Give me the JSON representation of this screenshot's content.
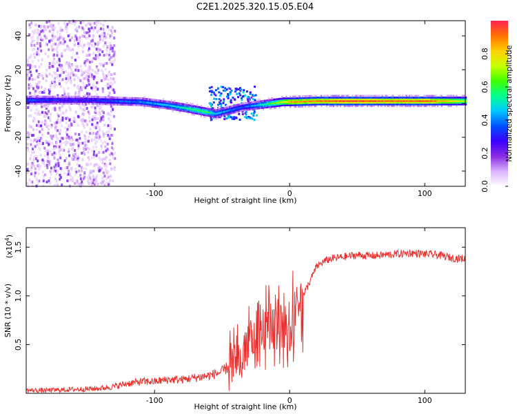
{
  "title": "C2E1.2025.320.15.05.E04",
  "chart_data": [
    {
      "type": "heatmap",
      "xlabel": "Height of straight line (km)",
      "ylabel": "Frequency (Hz)",
      "xlim": [
        -195,
        130
      ],
      "ylim": [
        -49,
        49
      ],
      "xticks": [
        -100,
        0,
        100
      ],
      "yticks": [
        -40,
        -20,
        0,
        20,
        40
      ],
      "colorbar": {
        "label": "Normalized spectral amplitude",
        "range": [
          0,
          1
        ],
        "ticks": [
          "0.0",
          "0.2",
          "0.4",
          "0.6",
          "0.8"
        ],
        "tick_values": [
          0,
          0.2,
          0.4,
          0.6,
          0.8
        ],
        "colors": [
          "#ffffff",
          "#d9b3ff",
          "#8a2be2",
          "#3a00ff",
          "#0050ff",
          "#00c8ff",
          "#00ff90",
          "#40ff00",
          "#c8ff00",
          "#ffd000",
          "#ff7000",
          "#ff2050"
        ]
      },
      "carrier_track": {
        "x": [
          -192,
          -170,
          -150,
          -130,
          -110,
          -90,
          -75,
          -62,
          -55,
          -45,
          -35,
          -25,
          -15,
          -5,
          0,
          20,
          40,
          60,
          80,
          100,
          130
        ],
        "frequency": [
          2,
          2,
          2,
          1.5,
          1,
          -1,
          -3,
          -5,
          -6,
          -4,
          -2,
          -1,
          0,
          1,
          1,
          1.5,
          1.5,
          1.5,
          1.5,
          1.5,
          1.5
        ],
        "amplitude": [
          0.35,
          0.3,
          0.3,
          0.35,
          0.4,
          0.45,
          0.55,
          0.6,
          0.45,
          0.4,
          0.35,
          0.45,
          0.6,
          0.75,
          0.85,
          0.9,
          0.95,
          0.95,
          0.9,
          0.95,
          0.7
        ]
      }
    },
    {
      "type": "line",
      "xlabel": "Height of straight line (km)",
      "ylabel": "SNR (10 * v/v)",
      "multiplier_label": "(x10",
      "multiplier_exp": "4",
      "multiplier_close": ")",
      "xlim": [
        -195,
        130
      ],
      "ylim": [
        0,
        1.7
      ],
      "xticks": [
        -100,
        0,
        100
      ],
      "yticks": [
        0.5,
        1.0,
        1.5
      ],
      "ytick_labels": [
        "0.5",
        "1.0",
        "1.5"
      ],
      "color": "#e8302e",
      "series": [
        {
          "name": "SNR",
          "x": [
            -195,
            -180,
            -160,
            -140,
            -130,
            -120,
            -110,
            -100,
            -90,
            -80,
            -70,
            -60,
            -50,
            -45,
            -40,
            -35,
            -30,
            -25,
            -20,
            -15,
            -10,
            -5,
            0,
            5,
            10,
            15,
            20,
            25,
            30,
            40,
            50,
            60,
            70,
            80,
            90,
            100,
            110,
            120,
            130
          ],
          "values": [
            0.03,
            0.03,
            0.04,
            0.05,
            0.07,
            0.1,
            0.12,
            0.12,
            0.14,
            0.14,
            0.16,
            0.18,
            0.22,
            0.28,
            0.35,
            0.48,
            0.55,
            0.6,
            0.72,
            0.78,
            0.8,
            0.85,
            0.9,
            0.92,
            1.0,
            1.15,
            1.3,
            1.35,
            1.38,
            1.4,
            1.42,
            1.41,
            1.42,
            1.43,
            1.44,
            1.43,
            1.42,
            1.39,
            1.38
          ]
        }
      ]
    }
  ]
}
